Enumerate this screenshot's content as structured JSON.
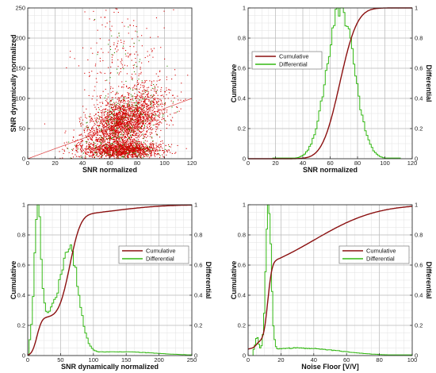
{
  "colors": {
    "scatter": "#d40000",
    "scatter_alt": "#2a8a00",
    "cumulative": "#8b1010",
    "differential": "#34b814",
    "grid_major": "#bbbbbb",
    "grid_minor": "#e2e2e2"
  },
  "chart_data": [
    {
      "type": "scatter",
      "xlabel": "SNR normalized",
      "ylabel": "SNR dynamically normalized",
      "xlim": [
        0,
        120
      ],
      "ylim": [
        0,
        250
      ],
      "xticks": [
        "0",
        "20",
        "40",
        "60",
        "80",
        "100",
        "120"
      ],
      "yticks": [
        "0",
        "50",
        "100",
        "150",
        "200",
        "250"
      ],
      "grid": true,
      "clusters": [
        {
          "cx": 70,
          "cy": 62,
          "sx": 15,
          "sy": 22,
          "n": 2600,
          "trend": 0.9
        },
        {
          "cx": 70,
          "cy": 15,
          "sx": 14,
          "sy": 7,
          "n": 1400,
          "trend": 0
        },
        {
          "cx": 68,
          "cy": 165,
          "sx": 14,
          "sy": 45,
          "n": 260,
          "trend": 0
        }
      ],
      "trend_line": {
        "x": [
          0,
          120
        ],
        "y": [
          0,
          100
        ]
      }
    },
    {
      "type": "line",
      "xlabel": "SNR normalized",
      "ylabel": "Cumulative",
      "ylabel_right": "Differential",
      "xlim": [
        0,
        120
      ],
      "ylim": [
        0,
        1
      ],
      "xticks": [
        "0",
        "20",
        "40",
        "60",
        "80",
        "100",
        "120"
      ],
      "yticks": [
        "0",
        "0.2",
        "0.4",
        "0.6",
        "0.8",
        "1"
      ],
      "yticks_right": [
        "0",
        "0.2",
        "0.4",
        "0.6",
        "0.8",
        "1"
      ],
      "legend": {
        "entries": [
          "Cumulative",
          "Differential"
        ],
        "placement": "top-left"
      },
      "grid": true,
      "series": [
        {
          "name": "Cumulative",
          "kind": "cdf",
          "peaks": [
            {
              "m": 67,
              "s": 10,
              "w": 1
            }
          ]
        },
        {
          "name": "Differential",
          "kind": "pdf",
          "peaks": [
            {
              "m": 67,
              "s": 10,
              "w": 1
            }
          ],
          "start": 18,
          "end": 112,
          "step": 1.2
        }
      ]
    },
    {
      "type": "line",
      "xlabel": "SNR dynamically normalized",
      "ylabel": "Cumulative",
      "ylabel_right": "Differential",
      "xlim": [
        0,
        250
      ],
      "ylim": [
        0,
        1
      ],
      "xticks": [
        "0",
        "50",
        "100",
        "150",
        "200",
        "250"
      ],
      "yticks": [
        "0",
        "0.2",
        "0.4",
        "0.6",
        "0.8",
        "1"
      ],
      "yticks_right": [
        "0",
        "0.2",
        "0.4",
        "0.6",
        "0.8",
        "1"
      ],
      "legend": {
        "entries": [
          "Cumulative",
          "Differential"
        ],
        "placement": "center-right"
      },
      "grid": true,
      "series": [
        {
          "name": "Cumulative",
          "kind": "cdf",
          "peaks": [
            {
              "m": 14,
              "s": 6,
              "w": 0.25
            },
            {
              "m": 64,
              "s": 13,
              "w": 0.67
            },
            {
              "m": 130,
              "s": 60,
              "w": 0.08
            }
          ]
        },
        {
          "name": "Differential",
          "kind": "pdf",
          "peaks": [
            {
              "m": 14,
              "s": 5,
              "w": 0.83
            },
            {
              "m": 64,
              "s": 13,
              "w": 0.62
            },
            {
              "m": 34,
              "s": 18,
              "w": 0.27
            },
            {
              "m": 135,
              "s": 60,
              "w": 0.025
            }
          ],
          "start": 2,
          "end": 250,
          "step": 2.5
        }
      ]
    },
    {
      "type": "line",
      "xlabel": "Noise Floor [V/V]",
      "ylabel": "Cumulative",
      "ylabel_right": "Differential",
      "xlim": [
        0,
        100
      ],
      "ylim": [
        0,
        1
      ],
      "xticks": [
        "0",
        "20",
        "40",
        "60",
        "80",
        "100"
      ],
      "yticks": [
        "0",
        "0.2",
        "0.4",
        "0.6",
        "0.8",
        "1"
      ],
      "yticks_right": [
        "0",
        "0.2",
        "0.4",
        "0.6",
        "0.8",
        "1"
      ],
      "legend": {
        "entries": [
          "Cumulative",
          "Differential"
        ],
        "placement": "center-right"
      },
      "grid": true,
      "series": [
        {
          "name": "Cumulative",
          "kind": "cdf",
          "peaks": [
            {
              "m": 12,
              "s": 2,
              "w": 0.5
            },
            {
              "m": 5,
              "s": 1.2,
              "w": 0.03
            },
            {
              "m": 40,
              "s": 30,
              "w": 0.47
            }
          ]
        },
        {
          "name": "Differential",
          "kind": "pdf",
          "peaks": [
            {
              "m": 12,
              "s": 1.6,
              "w": 0.97
            },
            {
              "m": 5,
              "s": 1.0,
              "w": 0.09
            },
            {
              "m": 30,
              "s": 25,
              "w": 0.05
            }
          ],
          "start": 3,
          "end": 100,
          "step": 0.8
        }
      ]
    }
  ]
}
